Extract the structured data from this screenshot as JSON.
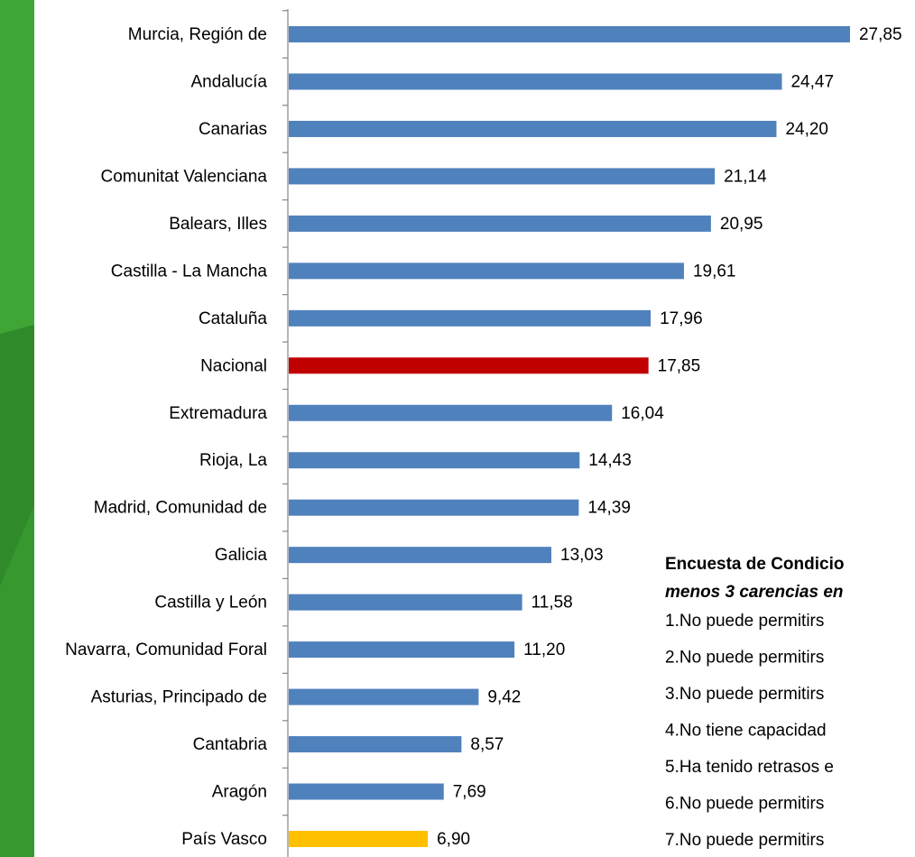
{
  "chart_data": {
    "type": "bar",
    "orientation": "horizontal",
    "categories": [
      "Murcia, Región de",
      "Andalucía",
      "Canarias",
      "Comunitat Valenciana",
      "Balears, Illes",
      "Castilla - La Mancha",
      "Cataluña",
      "Nacional",
      "Extremadura",
      "Rioja, La",
      "Madrid, Comunidad de",
      "Galicia",
      "Castilla y León",
      "Navarra, Comunidad Foral",
      "Asturias, Principado de",
      "Cantabria",
      "Aragón",
      "País Vasco"
    ],
    "values": [
      27.85,
      24.47,
      24.2,
      21.14,
      20.95,
      19.61,
      17.96,
      17.85,
      16.04,
      14.43,
      14.39,
      13.03,
      11.58,
      11.2,
      9.42,
      8.57,
      7.69,
      6.9
    ],
    "value_labels": [
      "27,85",
      "24,47",
      "24,20",
      "21,14",
      "20,95",
      "19,61",
      "17,96",
      "17,85",
      "16,04",
      "14,43",
      "14,39",
      "13,03",
      "11,58",
      "11,20",
      "9,42",
      "8,57",
      "7,69",
      "6,90"
    ],
    "colors": [
      "#4f81bd",
      "#4f81bd",
      "#4f81bd",
      "#4f81bd",
      "#4f81bd",
      "#4f81bd",
      "#4f81bd",
      "#c00000",
      "#4f81bd",
      "#4f81bd",
      "#4f81bd",
      "#4f81bd",
      "#4f81bd",
      "#4f81bd",
      "#4f81bd",
      "#4f81bd",
      "#4f81bd",
      "#ffc000"
    ],
    "xlim": [
      0,
      30
    ],
    "text_box": {
      "title": "Encuesta de Condicio",
      "subtitle": "menos 3 carencias en",
      "items": [
        "1.No puede permitirs",
        "2.No puede permitirs",
        "3.No puede permitirs",
        "4.No tiene capacidad",
        "5.Ha tenido retrasos e",
        "6.No puede permitirs",
        "7.No puede permitirs"
      ]
    }
  }
}
